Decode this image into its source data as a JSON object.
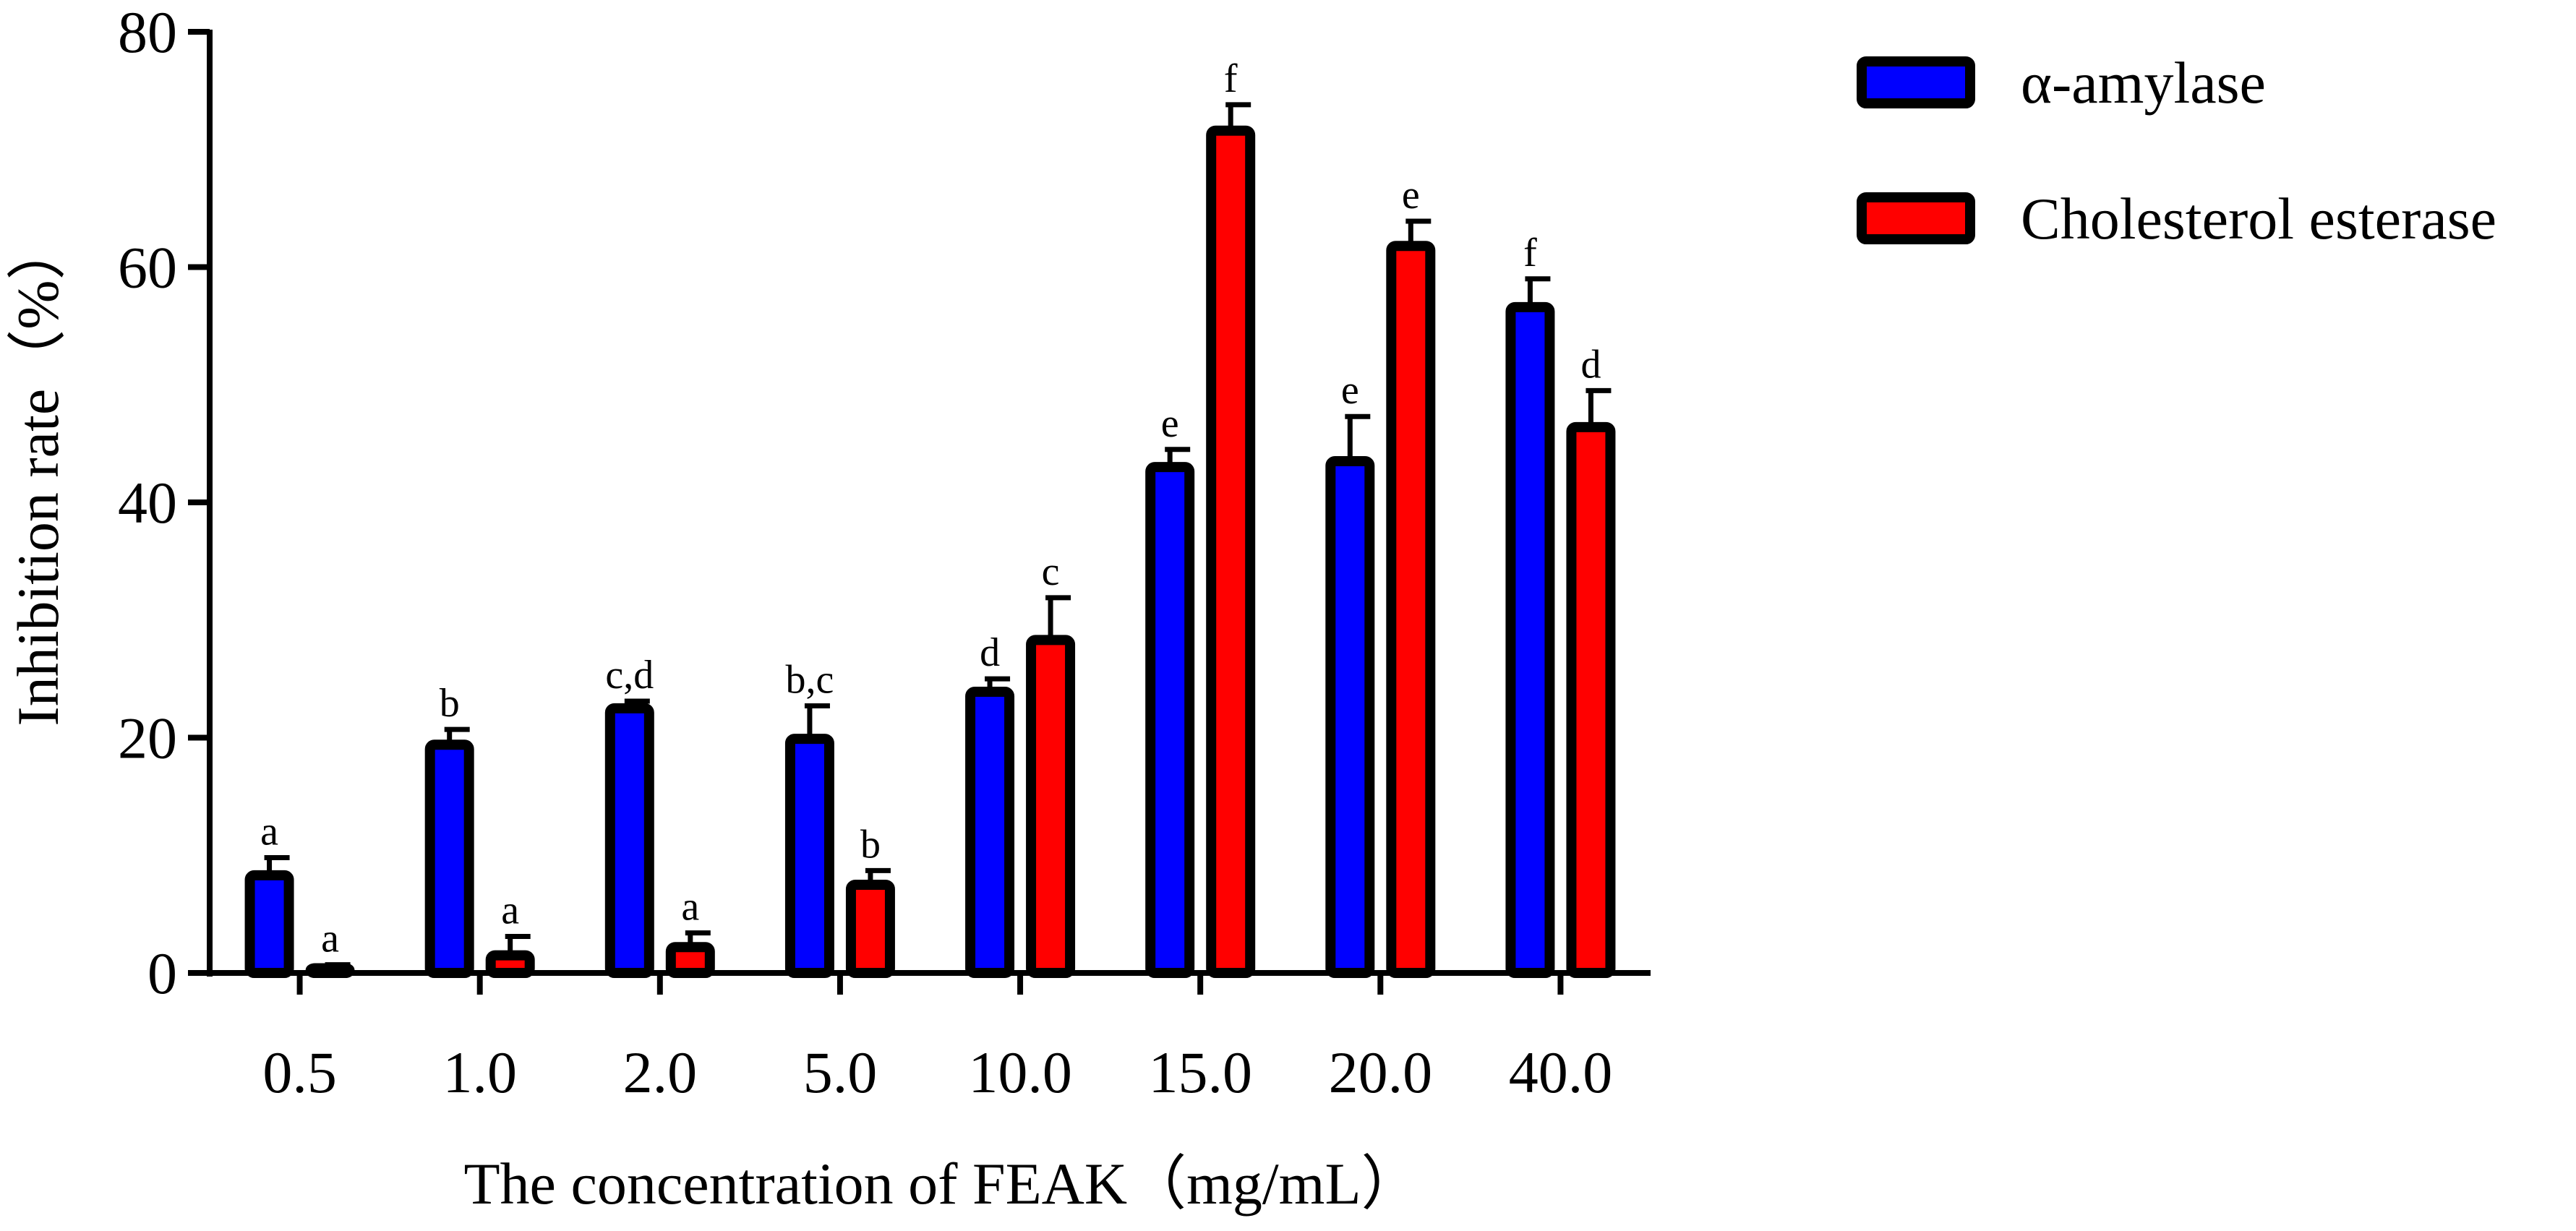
{
  "chart_data": {
    "type": "bar",
    "xlabel": "The concentration of  FEAK（mg/mL）",
    "ylabel": "Inhibition rate（%）",
    "ylim": [
      0,
      80
    ],
    "yticks": [
      "0",
      "20",
      "40",
      "60",
      "80"
    ],
    "categories": [
      "0.5",
      "1.0",
      "2.0",
      "5.0",
      "10.0",
      "15.0",
      "20.0",
      "40.0"
    ],
    "series": [
      {
        "name": " α-amylase",
        "color": "#0000ff",
        "values": [
          8.3,
          19.4,
          22.5,
          19.9,
          23.9,
          43.0,
          43.5,
          56.6
        ],
        "errors": [
          1.5,
          1.3,
          0.6,
          2.8,
          1.1,
          1.5,
          3.8,
          2.4
        ],
        "labels": [
          "a",
          "b",
          "c,d",
          "b,c",
          "d",
          "e",
          "e",
          "f"
        ]
      },
      {
        "name": "Cholesterol esterase",
        "color": "#ff0000",
        "values": [
          0.4,
          1.5,
          2.2,
          7.5,
          28.3,
          71.6,
          61.8,
          46.4
        ],
        "errors": [
          0.3,
          1.6,
          1.2,
          1.2,
          3.6,
          2.2,
          2.1,
          3.1
        ],
        "labels": [
          "a",
          "a",
          "a",
          "b",
          "c",
          "f",
          "e",
          "d"
        ]
      }
    ],
    "legend_position": "top-right"
  }
}
